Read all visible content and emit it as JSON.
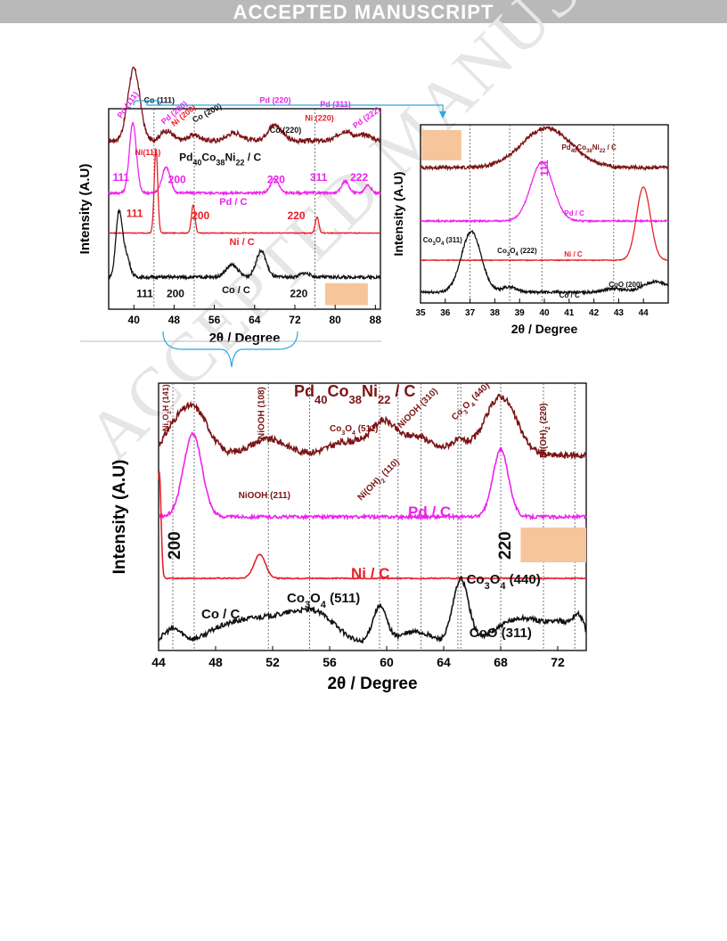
{
  "banner": "ACCEPTED MANUSCRIPT",
  "watermark": "ACCEPTED MANUSCRIPT",
  "colors": {
    "pdconi": "#7b1416",
    "pd": "#ee22ee",
    "ni": "#e8202a",
    "co": "#111111",
    "marker": "#f7c59b",
    "bracket": "#2aa8e0"
  },
  "chart_data": [
    {
      "id": "A",
      "type": "line",
      "xlabel": "2θ / Degree",
      "ylabel": "Intensity (A.U)",
      "xlim": [
        35,
        89
      ],
      "xticks": [
        40,
        48,
        56,
        64,
        72,
        80,
        88
      ],
      "vlines": [
        44,
        52,
        76
      ],
      "series": [
        {
          "name": "Pd40Co38Ni22 / C",
          "color": "#7b1416",
          "base": 0.84,
          "noise": 0.012,
          "peaks": [
            [
              40,
              0.36,
              1.2
            ],
            [
              46.5,
              0.05,
              1.2
            ],
            [
              52,
              0.03,
              1.2
            ],
            [
              60,
              0.04,
              1.5
            ],
            [
              68,
              0.08,
              1.4
            ],
            [
              82,
              0.05,
              1.4
            ],
            [
              86,
              0.03,
              1.2
            ]
          ]
        },
        {
          "name": "Pd / C",
          "color": "#ee22ee",
          "base": 0.58,
          "noise": 0.006,
          "peaks": [
            [
              39.8,
              0.35,
              0.7
            ],
            [
              46.4,
              0.13,
              0.8
            ],
            [
              68,
              0.07,
              0.8
            ],
            [
              82,
              0.06,
              0.7
            ],
            [
              86.5,
              0.04,
              0.6
            ]
          ]
        },
        {
          "name": "Ni / C",
          "color": "#e8202a",
          "base": 0.38,
          "noise": 0.002,
          "peaks": [
            [
              44.4,
              0.42,
              0.35
            ],
            [
              51.8,
              0.14,
              0.35
            ],
            [
              76.4,
              0.08,
              0.35
            ]
          ]
        },
        {
          "name": "Co / C",
          "color": "#111111",
          "base": 0.16,
          "noise": 0.008,
          "peaks": [
            [
              37,
              0.3,
              0.6
            ],
            [
              38.3,
              0.12,
              0.8
            ],
            [
              59.5,
              0.06,
              1.2
            ],
            [
              65.3,
              0.13,
              1.0
            ],
            [
              74,
              0.02,
              1
            ]
          ]
        }
      ],
      "labels": [
        {
          "text": "Pd (111)",
          "x": 37.5,
          "y": 0.95,
          "color": "#ee22ee",
          "size": 9,
          "rot": -55
        },
        {
          "text": "Co (111)",
          "x": 42,
          "y": 1.03,
          "color": "#111111",
          "size": 9,
          "rot": 0
        },
        {
          "text": "Pd (200)",
          "x": 46,
          "y": 0.92,
          "color": "#ee22ee",
          "size": 9,
          "rot": -40
        },
        {
          "text": "Ni (200)",
          "x": 48,
          "y": 0.91,
          "color": "#e8202a",
          "size": 9,
          "rot": -40
        },
        {
          "text": "Co (200)",
          "x": 52,
          "y": 0.93,
          "color": "#111111",
          "size": 9,
          "rot": -28
        },
        {
          "text": "Pd (220)",
          "x": 65,
          "y": 1.03,
          "color": "#ee22ee",
          "size": 9,
          "rot": 0
        },
        {
          "text": "Co (220)",
          "x": 67,
          "y": 0.88,
          "color": "#111111",
          "size": 9,
          "rot": 0
        },
        {
          "text": "Ni (220)",
          "x": 74,
          "y": 0.94,
          "color": "#e8202a",
          "size": 9,
          "rot": 0
        },
        {
          "text": "Pd (311)",
          "x": 77,
          "y": 1.01,
          "color": "#ee22ee",
          "size": 9,
          "rot": 0
        },
        {
          "text": "Pd (222)",
          "x": 84,
          "y": 0.9,
          "color": "#ee22ee",
          "size": 9,
          "rot": -35
        },
        {
          "text": "Ni(111)",
          "x": 40.2,
          "y": 0.77,
          "color": "#e8202a",
          "size": 9,
          "rot": 0
        },
        {
          "text": "Pd40Co38Ni22 / C",
          "x": 49,
          "y": 0.74,
          "color": "#111111",
          "size": 12,
          "rot": 0
        },
        {
          "text": "111",
          "x": 35.8,
          "y": 0.64,
          "color": "#ee22ee",
          "size": 12,
          "rot": 0
        },
        {
          "text": "200",
          "x": 46.8,
          "y": 0.63,
          "color": "#ee22ee",
          "size": 12,
          "rot": 0
        },
        {
          "text": "220",
          "x": 66.5,
          "y": 0.63,
          "color": "#ee22ee",
          "size": 12,
          "rot": 0
        },
        {
          "text": "311",
          "x": 75,
          "y": 0.64,
          "color": "#ee22ee",
          "size": 12,
          "rot": 0
        },
        {
          "text": "222",
          "x": 83,
          "y": 0.64,
          "color": "#ee22ee",
          "size": 12,
          "rot": 0
        },
        {
          "text": "Pd / C",
          "x": 57,
          "y": 0.52,
          "color": "#ee22ee",
          "size": 11,
          "rot": 0
        },
        {
          "text": "111",
          "x": 38.5,
          "y": 0.46,
          "color": "#e8202a",
          "size": 12,
          "rot": 0
        },
        {
          "text": "200",
          "x": 51.5,
          "y": 0.45,
          "color": "#e8202a",
          "size": 12,
          "rot": 0
        },
        {
          "text": "220",
          "x": 70.5,
          "y": 0.45,
          "color": "#e8202a",
          "size": 12,
          "rot": 0
        },
        {
          "text": "Ni / C",
          "x": 59,
          "y": 0.32,
          "color": "#e8202a",
          "size": 11,
          "rot": 0
        },
        {
          "text": "111",
          "x": 40.5,
          "y": 0.06,
          "color": "#111111",
          "size": 12,
          "rot": 0
        },
        {
          "text": "200",
          "x": 46.5,
          "y": 0.06,
          "color": "#111111",
          "size": 12,
          "rot": 0
        },
        {
          "text": "Co / C",
          "x": 57.5,
          "y": 0.08,
          "color": "#111111",
          "size": 11,
          "rot": 0
        },
        {
          "text": "220",
          "x": 71,
          "y": 0.06,
          "color": "#111111",
          "size": 12,
          "rot": 0
        }
      ],
      "marker": {
        "x": [
          78,
          86.5
        ],
        "y": [
          0.02,
          0.13
        ]
      }
    },
    {
      "id": "B",
      "type": "line",
      "xlabel": "2θ / Degree",
      "ylabel": "Intensity (A.U)",
      "xlim": [
        35,
        45
      ],
      "xticks": [
        35,
        36,
        37,
        38,
        39,
        40,
        41,
        42,
        43,
        44
      ],
      "vlines": [
        37,
        38.6,
        39.9,
        42.8
      ],
      "series": [
        {
          "name": "Pd40Co38Ni22 / C",
          "color": "#7b1416",
          "base": 0.76,
          "noise": 0.01,
          "peaks": [
            [
              40.1,
              0.22,
              1.0
            ]
          ]
        },
        {
          "name": "Pd / C",
          "color": "#ee22ee",
          "base": 0.46,
          "noise": 0.004,
          "peaks": [
            [
              39.9,
              0.33,
              0.45
            ]
          ]
        },
        {
          "name": "Ni / C",
          "color": "#e8202a",
          "base": 0.24,
          "noise": 0.002,
          "peaks": [
            [
              44,
              0.41,
              0.28
            ]
          ]
        },
        {
          "name": "Co / C",
          "color": "#111111",
          "base": 0.06,
          "noise": 0.007,
          "peaks": [
            [
              37.05,
              0.34,
              0.4
            ],
            [
              38.6,
              0.03,
              0.3
            ],
            [
              42.8,
              0.02,
              0.4
            ],
            [
              44.5,
              0.06,
              0.5
            ]
          ]
        }
      ],
      "labels": [
        {
          "text": "Pd40Co38Ni22 / C",
          "x": 40.7,
          "y": 0.86,
          "color": "#7b1416",
          "size": 8,
          "rot": 0
        },
        {
          "text": "111",
          "x": 40.15,
          "y": 0.71,
          "color": "#ee22ee",
          "size": 12,
          "rot": -90
        },
        {
          "text": "Pd / C",
          "x": 40.8,
          "y": 0.49,
          "color": "#ee22ee",
          "size": 8,
          "rot": 0
        },
        {
          "text": "Co3O4 (311)",
          "x": 35.1,
          "y": 0.34,
          "color": "#111111",
          "size": 8,
          "rot": 0
        },
        {
          "text": "Co3O4 (222)",
          "x": 38.1,
          "y": 0.28,
          "color": "#111111",
          "size": 8,
          "rot": 0
        },
        {
          "text": "Ni / C",
          "x": 40.8,
          "y": 0.26,
          "color": "#e8202a",
          "size": 8,
          "rot": 0
        },
        {
          "text": "CoO (200)",
          "x": 42.6,
          "y": 0.09,
          "color": "#111111",
          "size": 8,
          "rot": 0
        },
        {
          "text": "Co / C",
          "x": 40.6,
          "y": 0.03,
          "color": "#111111",
          "size": 8,
          "rot": 0
        }
      ],
      "marker": {
        "x": [
          35.05,
          36.65
        ],
        "y": [
          0.8,
          0.97
        ]
      }
    },
    {
      "id": "C",
      "type": "line",
      "xlabel": "2θ / Degree",
      "ylabel": "Intensity (A.U)",
      "xlim": [
        44,
        74
      ],
      "xticks": [
        44,
        48,
        52,
        56,
        60,
        64,
        68,
        72
      ],
      "vlines": [
        45,
        46.5,
        51.7,
        54.6,
        59.5,
        60.8,
        62.4,
        65,
        65.2,
        68,
        71,
        73.2
      ],
      "series": [
        {
          "name": "Pd40Co38Ni22 / C",
          "color": "#7b1416",
          "base": 0.73,
          "noise": 0.012,
          "peaks": [
            [
              45,
              0.07,
              0.8
            ],
            [
              46.5,
              0.17,
              1.0
            ],
            [
              51.7,
              0.06,
              1.3
            ],
            [
              57.2,
              0.05,
              1.3
            ],
            [
              59.8,
              0.12,
              0.9
            ],
            [
              62.2,
              0.07,
              1.0
            ],
            [
              65,
              0.05,
              0.7
            ],
            [
              68,
              0.22,
              1.1
            ]
          ]
        },
        {
          "name": "Pd / C",
          "color": "#ee22ee",
          "base": 0.5,
          "noise": 0.006,
          "peaks": [
            [
              46.4,
              0.31,
              0.65
            ],
            [
              68,
              0.25,
              0.55
            ]
          ]
        },
        {
          "name": "Ni / C",
          "color": "#e8202a",
          "base": 0.27,
          "noise": 0.002,
          "peaks": [
            [
              51.1,
              0.09,
              0.4
            ],
            [
              44.05,
              0.4,
              0.12
            ]
          ]
        },
        {
          "name": "Co / C",
          "color": "#111111",
          "base": 0.02,
          "noise": 0.009,
          "peaks": [
            [
              45,
              0.06,
              0.7
            ],
            [
              48.2,
              0.05,
              1.2
            ],
            [
              50.4,
              0.07,
              1.3
            ],
            [
              53.2,
              0.1,
              1.6
            ],
            [
              55.5,
              0.08,
              1.3
            ],
            [
              59.5,
              0.14,
              0.5
            ],
            [
              62,
              0.05,
              1.2
            ],
            [
              65.2,
              0.24,
              0.55
            ],
            [
              69.5,
              0.1,
              1.8
            ],
            [
              72.5,
              0.06,
              1.0
            ],
            [
              73.5,
              0.07,
              0.4
            ]
          ]
        }
      ],
      "labels": [
        {
          "text": "Ni2O2H (141)",
          "x": 44.7,
          "y": 0.82,
          "color": "#7b1416",
          "size": 9,
          "rot": -90
        },
        {
          "text": "NiOOH (108)",
          "x": 51.4,
          "y": 0.79,
          "color": "#7b1416",
          "size": 10,
          "rot": -90
        },
        {
          "text": "Pd40Co38Ni22 / C",
          "x": 53.5,
          "y": 0.95,
          "color": "#7b1416",
          "size": 18,
          "rot": 0
        },
        {
          "text": "Co3O4 (511)",
          "x": 56,
          "y": 0.82,
          "color": "#7b1416",
          "size": 10,
          "rot": 0
        },
        {
          "text": "NiOOH (310)",
          "x": 61,
          "y": 0.83,
          "color": "#7b1416",
          "size": 10,
          "rot": -45
        },
        {
          "text": "Co3O4 (440)",
          "x": 64.8,
          "y": 0.86,
          "color": "#7b1416",
          "size": 10,
          "rot": -45
        },
        {
          "text": "Ni(OH)2 (220)",
          "x": 71.2,
          "y": 0.72,
          "color": "#7b1416",
          "size": 10,
          "rot": -90
        },
        {
          "text": "NiOOH (211)",
          "x": 49.6,
          "y": 0.57,
          "color": "#7b1416",
          "size": 10,
          "rot": 0
        },
        {
          "text": "Ni(OH)2 (110)",
          "x": 58.2,
          "y": 0.56,
          "color": "#7b1416",
          "size": 10,
          "rot": -45
        },
        {
          "text": "Pd / C",
          "x": 61.5,
          "y": 0.5,
          "color": "#ee22ee",
          "size": 17,
          "rot": 0
        },
        {
          "text": "200",
          "x": 45.5,
          "y": 0.34,
          "color": "#111111",
          "size": 19,
          "rot": -90
        },
        {
          "text": "220",
          "x": 68.7,
          "y": 0.34,
          "color": "#111111",
          "size": 19,
          "rot": -90
        },
        {
          "text": "Ni / C",
          "x": 57.5,
          "y": 0.27,
          "color": "#e8202a",
          "size": 17,
          "rot": 0
        },
        {
          "text": "Co3O4 (511)",
          "x": 53,
          "y": 0.18,
          "color": "#111111",
          "size": 15,
          "rot": 0
        },
        {
          "text": "Co3O4 (440)",
          "x": 65.6,
          "y": 0.25,
          "color": "#111111",
          "size": 15,
          "rot": 0
        },
        {
          "text": "Co / C",
          "x": 47,
          "y": 0.12,
          "color": "#111111",
          "size": 15,
          "rot": 0
        },
        {
          "text": "CoO (311)",
          "x": 65.8,
          "y": 0.05,
          "color": "#111111",
          "size": 15,
          "rot": 0
        }
      ],
      "marker": {
        "x": [
          69.4,
          74
        ],
        "y": [
          0.33,
          0.46
        ]
      }
    }
  ]
}
